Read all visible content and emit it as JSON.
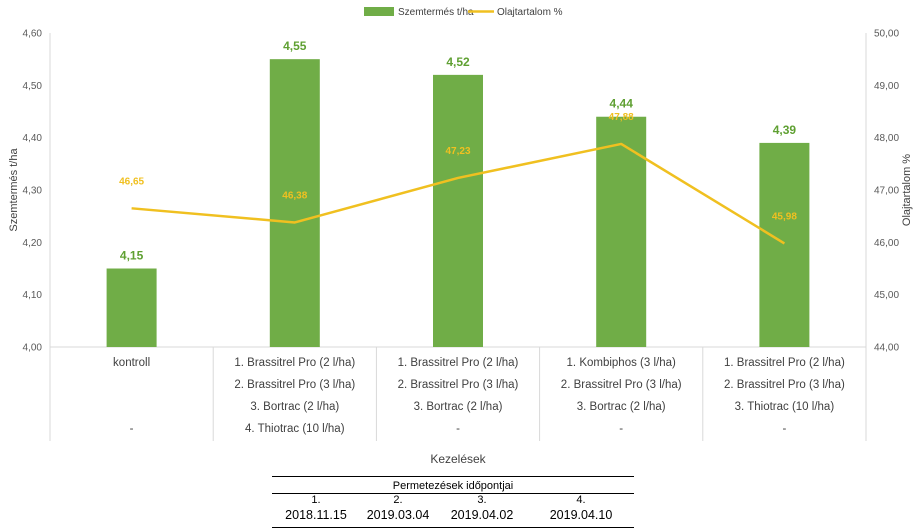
{
  "chart_data": {
    "type": "bar+line",
    "legend": {
      "position": "top-center"
    },
    "categories": [
      {
        "lines": [
          "kontroll",
          "",
          "",
          "-"
        ]
      },
      {
        "lines": [
          "1. Brassitrel Pro (2 l/ha)",
          "2. Brassitrel Pro (3 l/ha)",
          "3. Bortrac (2 l/ha)",
          "4. Thiotrac (10 l/ha)"
        ]
      },
      {
        "lines": [
          "1. Brassitrel Pro (2 l/ha)",
          "2. Brassitrel Pro (3 l/ha)",
          "3. Bortrac (2 l/ha)",
          "-"
        ]
      },
      {
        "lines": [
          "1. Kombiphos (3 l/ha)",
          "2. Brassitrel Pro (3 l/ha)",
          "3. Bortrac (2 l/ha)",
          "-"
        ]
      },
      {
        "lines": [
          "1. Brassitrel Pro (2 l/ha)",
          "2. Brassitrel Pro (3 l/ha)",
          "3. Thiotrac (10 l/ha)",
          "-"
        ]
      }
    ],
    "series": [
      {
        "name": "Szemtermés t/ha",
        "type": "bar",
        "axis": "left",
        "color": "#70AD47",
        "label_color": "#5FA032",
        "values": [
          4.15,
          4.55,
          4.52,
          4.44,
          4.39
        ],
        "labels": [
          "4,15",
          "4,55",
          "4,52",
          "4,44",
          "4,39"
        ]
      },
      {
        "name": "Olajtartalom %",
        "type": "line",
        "axis": "right",
        "color": "#F0C020",
        "values": [
          46.65,
          46.38,
          47.23,
          47.88,
          45.98
        ],
        "labels": [
          "46,65",
          "46,38",
          "47,23",
          "47,88",
          "45,98"
        ]
      }
    ],
    "y_left": {
      "label": "Szemtermés t/ha",
      "range": [
        4.0,
        4.6
      ],
      "ticks": [
        4.0,
        4.1,
        4.2,
        4.3,
        4.4,
        4.5,
        4.6
      ],
      "tick_labels": [
        "4,00",
        "4,10",
        "4,20",
        "4,30",
        "4,40",
        "4,50",
        "4,60"
      ]
    },
    "y_right": {
      "label": "Olajtartalom %",
      "range": [
        44.0,
        50.0
      ],
      "ticks": [
        44,
        45,
        46,
        47,
        48,
        49,
        50
      ],
      "tick_labels": [
        "44,00",
        "45,00",
        "46,00",
        "47,00",
        "48,00",
        "49,00",
        "50,00"
      ]
    },
    "xlabel": "Kezelések",
    "grid": false
  },
  "spray_table": {
    "title": "Permetezések  időpontjai",
    "columns": [
      {
        "num": "1.",
        "date": "2018.11.15"
      },
      {
        "num": "2.",
        "date": "2019.03.04"
      },
      {
        "num": "3.",
        "date": "2019.04.02"
      },
      {
        "num": "4.",
        "date": "2019.04.10"
      }
    ]
  }
}
